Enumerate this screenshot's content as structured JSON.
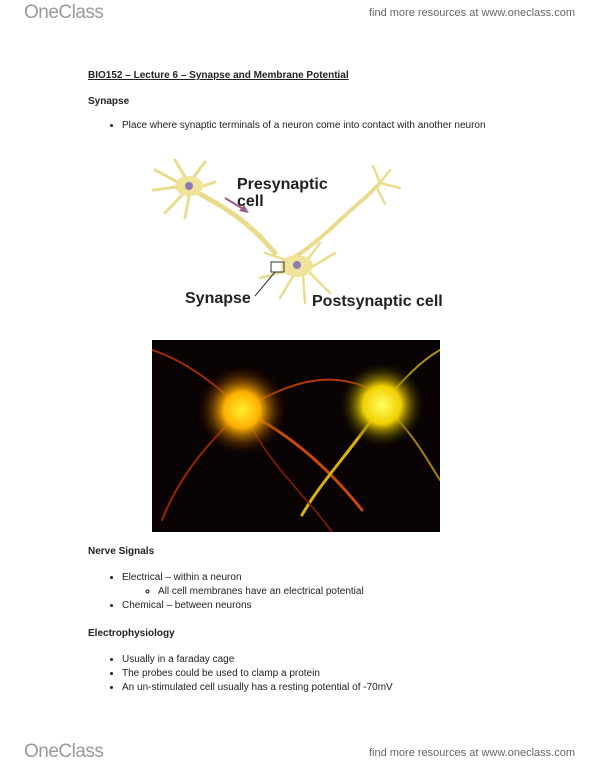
{
  "header": {
    "logo": "OneClass",
    "link": "find more resources at www.oneclass.com"
  },
  "title": "BIO152 – Lecture 6 – Synapse and Membrane Potential",
  "sections": [
    {
      "heading": "Synapse",
      "bullets": [
        "Place where synaptic terminals of a neuron come into contact with another neuron"
      ]
    },
    {
      "heading": "Nerve Signals",
      "bullets": [
        "Electrical – within a neuron",
        "Chemical – between neurons"
      ],
      "sub_bullets": [
        "All cell membranes have an electrical potential"
      ]
    },
    {
      "heading": "Electrophysiology",
      "bullets": [
        "Usually in a faraday cage",
        "The probes could be used to clamp a protein",
        "An un-stimulated cell usually has a resting potential of -70mV"
      ]
    }
  ],
  "diagram": {
    "presynaptic": [
      "Presynaptic",
      "cell"
    ],
    "synapse": "Synapse",
    "postsynaptic": "Postsynaptic cell"
  },
  "footer": {
    "logo": "OneClass",
    "link": "find more resources at www.oneclass.com"
  }
}
